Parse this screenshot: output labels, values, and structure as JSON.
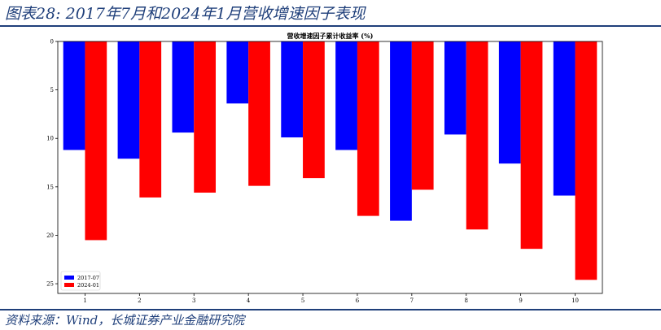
{
  "header": {
    "title": "图表28:  2017年7月和2024年1月营收增速因子表现"
  },
  "footer": {
    "source": "资料来源：Wind，长城证券产业金融研究院"
  },
  "colors": {
    "series_2017": "#0000ff",
    "series_2024": "#ff0000",
    "frame": "#000000",
    "accent": "#1f3f7a"
  },
  "chart_data": {
    "type": "bar",
    "title": "营收增速因子累计收益率 (%)",
    "xlabel": "",
    "ylabel": "",
    "categories": [
      "1",
      "2",
      "3",
      "4",
      "5",
      "6",
      "7",
      "8",
      "9",
      "10"
    ],
    "series": [
      {
        "name": "2017-07",
        "color": "#0000ff",
        "values": [
          11.2,
          12.1,
          9.4,
          6.4,
          9.9,
          11.2,
          18.5,
          9.6,
          12.6,
          15.9
        ]
      },
      {
        "name": "2024-01",
        "color": "#ff0000",
        "values": [
          20.5,
          16.1,
          15.6,
          14.9,
          14.1,
          18.0,
          15.3,
          19.4,
          21.4,
          24.6
        ]
      }
    ],
    "ylim": [
      0,
      26
    ],
    "yaxis_inverted": true,
    "yticks": [
      0,
      5,
      10,
      15,
      20,
      25
    ],
    "grid": false,
    "legend": "lower-left"
  }
}
